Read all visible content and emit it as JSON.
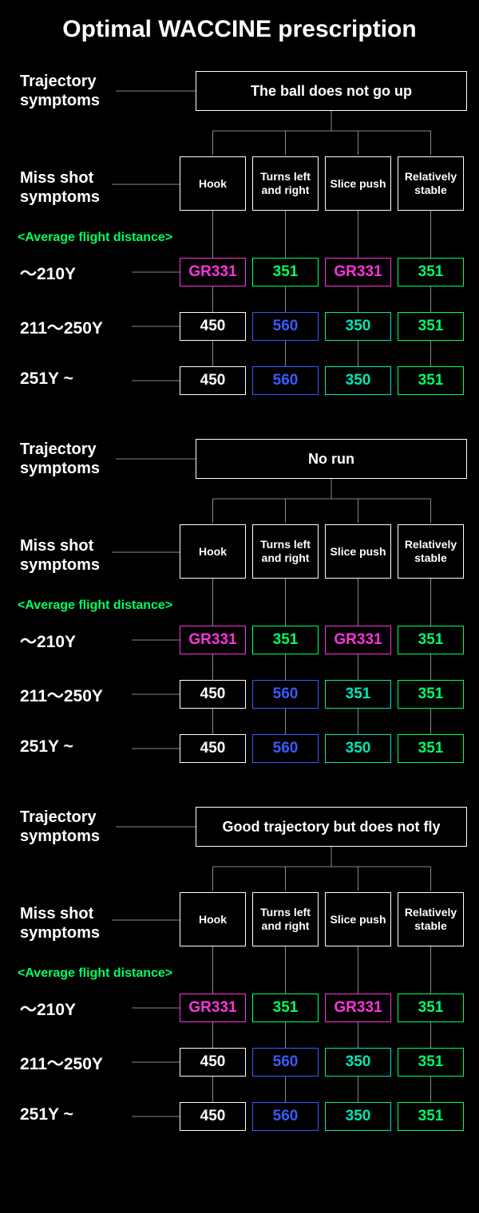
{
  "title": "Optimal WACCINE prescription",
  "labels": {
    "trajectory": "Trajectory\nsymptoms",
    "missshot": "Miss shot\nsymptoms",
    "avg": "<Average flight distance>"
  },
  "miss_headers": [
    "Hook",
    "Turns left\nand right",
    "Slice push",
    "Relatively\nstable"
  ],
  "distances": [
    "～210Y",
    "211～250Y",
    "251Y ~"
  ],
  "colors": {
    "bg": "#000000",
    "white": "#ffffff",
    "green": "#00ff66",
    "magenta": "#ff33dd",
    "blue": "#3a5aff",
    "teal": "#00e6b8",
    "line": "#888888"
  },
  "cell_styles": {
    "white": {
      "border": "#ffffff",
      "text": "#ffffff"
    },
    "green": {
      "border": "#00ff66",
      "text": "#00ff66"
    },
    "magenta": {
      "border": "#ff33dd",
      "text": "#ff33dd"
    },
    "blue": {
      "border": "#3a5aff",
      "text": "#3a5aff"
    },
    "teal": {
      "border": "#00e6b8",
      "text": "#00e6b8"
    }
  },
  "sections": [
    {
      "trajectory": "The ball does not go up",
      "rows": [
        [
          {
            "v": "GR331",
            "s": "magenta"
          },
          {
            "v": "351",
            "s": "green"
          },
          {
            "v": "GR331",
            "s": "magenta"
          },
          {
            "v": "351",
            "s": "green"
          }
        ],
        [
          {
            "v": "450",
            "s": "white"
          },
          {
            "v": "560",
            "s": "blue"
          },
          {
            "v": "350",
            "s": "teal"
          },
          {
            "v": "351",
            "s": "green"
          }
        ],
        [
          {
            "v": "450",
            "s": "white"
          },
          {
            "v": "560",
            "s": "blue"
          },
          {
            "v": "350",
            "s": "teal"
          },
          {
            "v": "351",
            "s": "green"
          }
        ]
      ]
    },
    {
      "trajectory": "No run",
      "rows": [
        [
          {
            "v": "GR331",
            "s": "magenta"
          },
          {
            "v": "351",
            "s": "green"
          },
          {
            "v": "GR331",
            "s": "magenta"
          },
          {
            "v": "351",
            "s": "green"
          }
        ],
        [
          {
            "v": "450",
            "s": "white"
          },
          {
            "v": "560",
            "s": "blue"
          },
          {
            "v": "351",
            "s": "teal"
          },
          {
            "v": "351",
            "s": "green"
          }
        ],
        [
          {
            "v": "450",
            "s": "white"
          },
          {
            "v": "560",
            "s": "blue"
          },
          {
            "v": "350",
            "s": "teal"
          },
          {
            "v": "351",
            "s": "green"
          }
        ]
      ]
    },
    {
      "trajectory": "Good trajectory but does not fly",
      "rows": [
        [
          {
            "v": "GR331",
            "s": "magenta"
          },
          {
            "v": "351",
            "s": "green"
          },
          {
            "v": "GR331",
            "s": "magenta"
          },
          {
            "v": "351",
            "s": "green"
          }
        ],
        [
          {
            "v": "450",
            "s": "white"
          },
          {
            "v": "560",
            "s": "blue"
          },
          {
            "v": "350",
            "s": "teal"
          },
          {
            "v": "351",
            "s": "green"
          }
        ],
        [
          {
            "v": "450",
            "s": "white"
          },
          {
            "v": "560",
            "s": "blue"
          },
          {
            "v": "350",
            "s": "teal"
          },
          {
            "v": "351",
            "s": "green"
          }
        ]
      ]
    }
  ]
}
